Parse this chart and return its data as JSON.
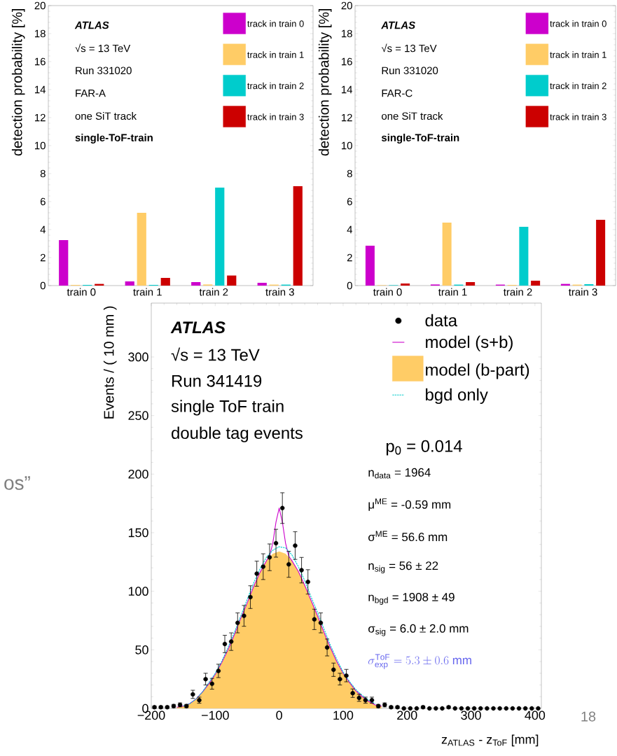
{
  "chart_data": [
    {
      "type": "bar",
      "ylabel": "detection probability [%]",
      "categories": [
        "train 0",
        "train 1",
        "train 2",
        "train 3"
      ],
      "series": [
        {
          "name": "track in train 0",
          "color": "#cc00cc",
          "values": [
            3.25,
            0.3,
            0.25,
            0.2
          ]
        },
        {
          "name": "track in train 1",
          "color": "#ffcc66",
          "values": [
            0.05,
            5.2,
            0.08,
            0.07
          ]
        },
        {
          "name": "track in train 2",
          "color": "#00cccc",
          "values": [
            0.05,
            0.05,
            7.0,
            0.07
          ]
        },
        {
          "name": "track in train 3",
          "color": "#cc0000",
          "values": [
            0.12,
            0.55,
            0.72,
            7.1
          ]
        }
      ],
      "ylim": [
        0,
        20
      ],
      "yticks": [
        0,
        2,
        4,
        6,
        8,
        10,
        12,
        14,
        16,
        18,
        20
      ],
      "legend": "top right",
      "annotations": [
        "ATLAS",
        "√s = 13 TeV",
        "Run 331020",
        "FAR-A",
        "one SiT track",
        "single-ToF-train"
      ]
    },
    {
      "type": "bar",
      "ylabel": "detection probability [%]",
      "categories": [
        "train 0",
        "train 1",
        "train 2",
        "train 3"
      ],
      "series": [
        {
          "name": "track in train 0",
          "color": "#cc00cc",
          "values": [
            2.85,
            0.08,
            0.07,
            0.12
          ]
        },
        {
          "name": "track in train 1",
          "color": "#ffcc66",
          "values": [
            0.03,
            4.5,
            0.05,
            0.07
          ]
        },
        {
          "name": "track in train 2",
          "color": "#00cccc",
          "values": [
            0.03,
            0.07,
            4.2,
            0.1
          ]
        },
        {
          "name": "track in train 3",
          "color": "#cc0000",
          "values": [
            0.15,
            0.25,
            0.35,
            4.7
          ]
        }
      ],
      "ylim": [
        0,
        20
      ],
      "yticks": [
        0,
        2,
        4,
        6,
        8,
        10,
        12,
        14,
        16,
        18,
        20
      ],
      "legend": "top right",
      "annotations": [
        "ATLAS",
        "√s = 13 TeV",
        "Run 331020",
        "FAR-C",
        "one SiT track",
        "single-ToF-train"
      ]
    },
    {
      "type": "scatter",
      "xlabel": "z$_{ATLAS}$ - z$_{ToF}$ [mm]",
      "ylabel": "Events / ( 10 mm )",
      "xlim": [
        -200,
        410
      ],
      "ylim": [
        0,
        346
      ],
      "xticks": [
        {
          "value": -200,
          "label": "−200"
        },
        {
          "value": -100,
          "label": "−100"
        },
        0,
        100,
        200,
        300,
        400
      ],
      "yticks": [
        0,
        50,
        100,
        150,
        200,
        250,
        300
      ],
      "legend": "top right",
      "series": [
        {
          "name": "data",
          "type": "scatter",
          "color": "#000000",
          "marker": "circle",
          "x": [
            -195,
            -185,
            -175,
            -165,
            -155,
            -145,
            -135,
            -125,
            -115,
            -105,
            -95,
            -85,
            -75,
            -65,
            -55,
            -45,
            -35,
            -25,
            -15,
            -5,
            5,
            15,
            25,
            35,
            45,
            55,
            65,
            75,
            85,
            95,
            105,
            115,
            125,
            135,
            145,
            155,
            165,
            175,
            185,
            195,
            205,
            215,
            225,
            235,
            245,
            255,
            265,
            275,
            285,
            295,
            305,
            315,
            325,
            335,
            345,
            355,
            365,
            375,
            385,
            395,
            405
          ],
          "values": [
            1,
            1,
            1,
            2,
            3,
            2,
            12,
            7,
            25,
            21,
            32,
            55,
            57,
            73,
            79,
            95,
            115,
            121,
            129,
            141,
            171,
            123,
            139,
            118,
            108,
            76,
            73,
            52,
            33,
            25,
            28,
            13,
            9,
            7,
            7,
            2,
            3,
            1,
            1,
            0,
            0,
            0,
            1,
            0,
            0,
            0,
            1,
            0,
            0,
            0,
            0,
            0,
            0,
            0,
            0,
            0,
            0,
            0,
            0,
            0,
            0
          ],
          "errors": [
            1,
            1,
            1,
            1.4,
            1.7,
            1.4,
            3.5,
            2.6,
            5,
            4.6,
            5.7,
            7.4,
            7.5,
            8.5,
            8.9,
            9.7,
            10.7,
            11,
            11.4,
            11.9,
            13.1,
            11.1,
            11.8,
            10.9,
            10.4,
            8.7,
            8.5,
            7.2,
            5.7,
            5,
            5.3,
            3.6,
            3,
            2.6,
            2.6,
            1.4,
            1.7,
            1,
            1,
            null,
            null,
            null,
            1,
            null,
            null,
            null,
            1,
            null,
            null,
            null,
            null,
            null,
            null,
            null,
            null,
            null,
            null,
            null,
            null,
            null,
            null
          ]
        },
        {
          "name": "model (s+b)",
          "type": "line",
          "color": "#cc00cc",
          "x": [
            -160,
            -150,
            -140,
            -130,
            -120,
            -110,
            -100,
            -90,
            -80,
            -70,
            -60,
            -50,
            -40,
            -30,
            -20,
            -15,
            -10,
            -5,
            0,
            5,
            10,
            15,
            20,
            30,
            40,
            50,
            60,
            70,
            80,
            90,
            100,
            110,
            120,
            130,
            140,
            150,
            160
          ],
          "values": [
            1,
            2,
            4,
            8,
            14,
            21,
            29,
            39,
            50,
            63,
            77,
            90,
            104,
            116,
            126,
            130,
            141,
            159,
            171,
            159,
            141,
            130,
            126,
            117,
            105,
            92,
            79,
            65,
            52,
            40,
            30,
            22,
            15,
            10,
            6,
            3,
            2
          ]
        },
        {
          "name": "model (b-part)",
          "type": "area",
          "color": "#ffcc66",
          "x": [
            -160,
            -150,
            -140,
            -130,
            -120,
            -110,
            -100,
            -90,
            -80,
            -70,
            -60,
            -50,
            -40,
            -30,
            -20,
            -10,
            0,
            10,
            20,
            30,
            40,
            50,
            60,
            70,
            80,
            90,
            100,
            110,
            120,
            130,
            140,
            150,
            160
          ],
          "values": [
            1,
            2,
            4,
            8,
            14,
            21,
            29,
            39,
            50,
            63,
            77,
            90,
            104,
            116,
            126,
            132,
            134,
            132,
            126,
            117,
            105,
            92,
            79,
            65,
            52,
            40,
            30,
            22,
            15,
            10,
            6,
            3,
            2
          ]
        },
        {
          "name": "bgd only",
          "type": "line",
          "color": "#00cccc",
          "line_style": "dashed",
          "x": [
            -150,
            -140,
            -130,
            -120,
            -110,
            -100,
            -90,
            -80,
            -70,
            -60,
            -50,
            -40,
            -30,
            -20,
            -10,
            0,
            10,
            20,
            30,
            40,
            50,
            60,
            70,
            80,
            90,
            100,
            110,
            120,
            130,
            140,
            150
          ],
          "values": [
            2,
            4,
            8,
            14,
            22,
            30,
            40,
            52,
            65,
            79,
            93,
            107,
            119,
            129,
            135,
            138,
            137,
            131,
            121,
            109,
            95,
            82,
            68,
            54,
            42,
            31,
            23,
            16,
            11,
            7,
            4
          ]
        }
      ],
      "annotations": [
        "ATLAS",
        "√s = 13 TeV",
        "Run 341419",
        "single ToF train",
        "double tag events",
        "p$_{0}$ = 0.014",
        "n$_{data}$ = 1964",
        "μ$^{ME}$ = -0.59 mm",
        "σ$^{ME}$ = 56.6 mm",
        "n$_{sig}$ = 56 ± 22",
        "n$_{bgd}$ = 1908 ± 49",
        "σ$_{sig}$ = 6.0 ± 2.0 mm",
        "\\sigma^{\\mathrm{ToF}}_{\\mathrm{exp}} = 5.3 \\pm 0.6\\ \\mathrm{mm}",
        "os”",
        "18"
      ]
    }
  ]
}
